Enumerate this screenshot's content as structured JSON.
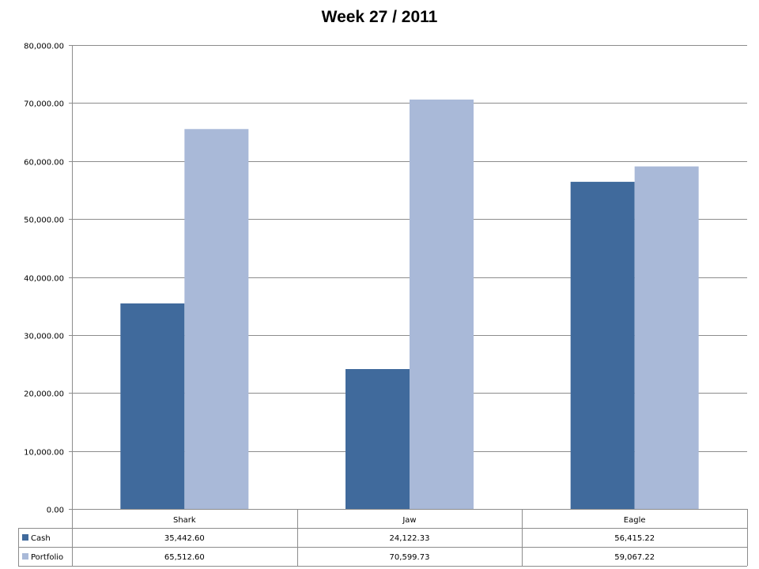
{
  "chart_data": {
    "type": "bar",
    "title": "Week 27 / 2011",
    "categories": [
      "Shark",
      "Jaw",
      "Eagle"
    ],
    "series": [
      {
        "name": "Cash",
        "values": [
          35442.6,
          24122.33,
          56415.22
        ],
        "labels": [
          "35,442.60",
          "24,122.33",
          "56,415.22"
        ],
        "color": "#406a9c"
      },
      {
        "name": "Portfolio",
        "values": [
          65512.6,
          70599.73,
          59067.22
        ],
        "labels": [
          "65,512.60",
          "70,599.73",
          "59,067.22"
        ],
        "color": "#a9b9d8"
      }
    ],
    "ylim": [
      0,
      80000
    ],
    "yticks": [
      0,
      10000,
      20000,
      30000,
      40000,
      50000,
      60000,
      70000,
      80000
    ],
    "ytick_labels": [
      "0.00",
      "10,000.00",
      "20,000.00",
      "30,000.00",
      "40,000.00",
      "50,000.00",
      "60,000.00",
      "70,000.00",
      "80,000.00"
    ],
    "grid": true,
    "legend": "data-table"
  }
}
